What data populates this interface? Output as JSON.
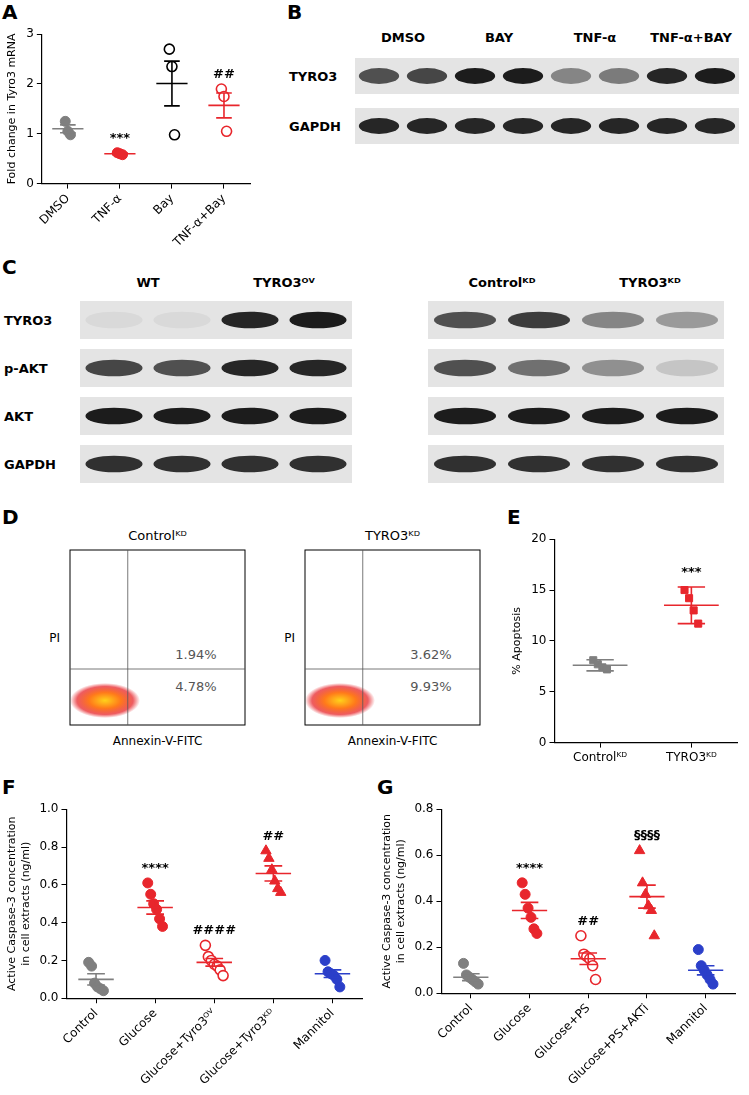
{
  "chart_data": [
    {
      "panel": "A",
      "type": "dot",
      "y_label": "Fold change in Tyro3 mRNA",
      "ylim": [
        0,
        3
      ],
      "yticks": [
        0,
        1,
        2,
        3
      ],
      "grid": false,
      "groups": [
        {
          "category": "DMSO",
          "color": "#7f7f7f",
          "marker": "circle",
          "values": [
            1.25,
            1.05,
            0.98
          ],
          "mean": 1.1,
          "error": 0.08
        },
        {
          "category": "TNF-α",
          "color": "#e8262c",
          "marker": "circle",
          "values": [
            0.62,
            0.6,
            0.58
          ],
          "mean": 0.6,
          "error": 0.02,
          "annotation": "***"
        },
        {
          "category": "Bay",
          "color": "#000000",
          "marker": "open circle",
          "values": [
            2.7,
            2.35,
            0.98
          ],
          "mean": 2.01,
          "error": 0.45
        },
        {
          "category": "TNF-α+Bay",
          "color": "#e8262c",
          "marker": "open circle",
          "values": [
            1.9,
            1.75,
            1.05
          ],
          "mean": 1.57,
          "error": 0.25,
          "annotation": "##"
        }
      ]
    },
    {
      "panel": "E",
      "type": "dot",
      "y_label": "% Apoptosis",
      "ylim": [
        0,
        20
      ],
      "yticks": [
        0,
        5,
        10,
        15,
        20
      ],
      "grid": false,
      "groups": [
        {
          "category": "Controlᴷᴰ",
          "color": "#7f7f7f",
          "marker": "square",
          "values": [
            8.1,
            7.7,
            7.4,
            7.2
          ],
          "mean": 7.6,
          "error": 0.55
        },
        {
          "category": "TYRO3ᴷᴰ",
          "color": "#e8262c",
          "marker": "square",
          "values": [
            15.0,
            14.2,
            13.0,
            11.7
          ],
          "mean": 13.5,
          "error": 1.8,
          "annotation": "***"
        }
      ]
    },
    {
      "panel": "F",
      "type": "dot",
      "y_label": [
        "Active Caspase-3 concentration",
        "in cell extracts (ng/ml)"
      ],
      "ylim": [
        0,
        1
      ],
      "yticks": [
        {
          "value": 0,
          "label": "0.0"
        },
        0.2,
        0.4,
        0.6,
        0.8,
        {
          "value": 1,
          "label": "1.0"
        }
      ],
      "grid": false,
      "groups": [
        {
          "category": "Control",
          "color": "#7f7f7f",
          "marker": "circle",
          "values": [
            0.19,
            0.17,
            0.08,
            0.06,
            0.05,
            0.04
          ],
          "mean": 0.1,
          "error": 0.03
        },
        {
          "category": "Glucose",
          "color": "#e8262c",
          "marker": "circle",
          "values": [
            0.61,
            0.55,
            0.5,
            0.47,
            0.42,
            0.38
          ],
          "mean": 0.48,
          "error": 0.035,
          "annotation": "****"
        },
        {
          "category": "Glucose+Tyro3ᴼⱽ",
          "color": "#e8262c",
          "marker": "open circle",
          "values": [
            0.28,
            0.22,
            0.2,
            0.18,
            0.17,
            0.15,
            0.12
          ],
          "mean": 0.19,
          "error": 0.02,
          "annotation": "####"
        },
        {
          "category": "Glucose+Tyro3ᴷᴰ",
          "color": "#e8262c",
          "marker": "triangle",
          "values": [
            0.78,
            0.74,
            0.68,
            0.62,
            0.58,
            0.56
          ],
          "mean": 0.66,
          "error": 0.04,
          "annotation": "##"
        },
        {
          "category": "Mannitol",
          "color": "#2b3fc9",
          "marker": "circle",
          "values": [
            0.2,
            0.14,
            0.13,
            0.12,
            0.1,
            0.06
          ],
          "mean": 0.13,
          "error": 0.02
        }
      ]
    },
    {
      "panel": "G",
      "type": "dot",
      "y_label": [
        "Active Caspase-3 concentration",
        "in cell extracts (ng/ml)"
      ],
      "ylim": [
        0,
        0.8
      ],
      "yticks": [
        {
          "value": 0,
          "label": "0.0"
        },
        0.2,
        0.4,
        0.6,
        0.8
      ],
      "grid": false,
      "groups": [
        {
          "category": "Control",
          "color": "#7f7f7f",
          "marker": "circle",
          "values": [
            0.13,
            0.08,
            0.07,
            0.06,
            0.05,
            0.04
          ],
          "mean": 0.07,
          "error": 0.015
        },
        {
          "category": "Glucose",
          "color": "#e8262c",
          "marker": "circle",
          "values": [
            0.48,
            0.43,
            0.37,
            0.33,
            0.28,
            0.26
          ],
          "mean": 0.36,
          "error": 0.035,
          "annotation": "****"
        },
        {
          "category": "Glucose+PS",
          "color": "#e8262c",
          "marker": "open circle",
          "values": [
            0.25,
            0.17,
            0.16,
            0.15,
            0.12,
            0.06
          ],
          "mean": 0.15,
          "error": 0.025,
          "annotation": "##"
        },
        {
          "category": "Glucose+PS+AKTi",
          "color": "#e8262c",
          "marker": "triangle",
          "values": [
            0.62,
            0.48,
            0.43,
            0.38,
            0.36,
            0.25
          ],
          "mean": 0.42,
          "error": 0.05,
          "annotation": "§§§§"
        },
        {
          "category": "Mannitol",
          "color": "#2b3fc9",
          "marker": "circle",
          "values": [
            0.19,
            0.12,
            0.1,
            0.08,
            0.06,
            0.04
          ],
          "mean": 0.1,
          "error": 0.02
        }
      ]
    }
  ],
  "blots": [
    {
      "panel": "B",
      "row_labels": [
        "TYRO3",
        "GAPDH"
      ],
      "blocks": [
        {
          "columns": [
            "DMSO",
            "BAY",
            "TNF-α",
            "TNF-α+BAY"
          ],
          "bands": [
            [
              0.7,
              0.75,
              0.95,
              0.95,
              0.45,
              0.5,
              0.9,
              0.95
            ],
            [
              0.9,
              0.9,
              0.9,
              0.9,
              0.9,
              0.9,
              0.9,
              0.9
            ]
          ]
        }
      ]
    },
    {
      "panel": "C",
      "row_labels": [
        "TYRO3",
        "p-AKT",
        "AKT",
        "GAPDH"
      ],
      "blocks": [
        {
          "columns": [
            "WT",
            "TYRO3ᴼⱽ"
          ],
          "bands": [
            [
              0.05,
              0.05,
              0.9,
              0.95
            ],
            [
              0.75,
              0.7,
              0.9,
              0.9
            ],
            [
              0.95,
              0.95,
              0.95,
              0.95
            ],
            [
              0.85,
              0.85,
              0.85,
              0.85
            ]
          ]
        },
        {
          "columns": [
            "Controlᴷᴰ",
            "TYRO3ᴷᴰ"
          ],
          "bands": [
            [
              0.7,
              0.8,
              0.45,
              0.35
            ],
            [
              0.7,
              0.55,
              0.4,
              0.15
            ],
            [
              0.95,
              0.95,
              0.95,
              0.95
            ],
            [
              0.85,
              0.85,
              0.85,
              0.85
            ]
          ]
        }
      ]
    }
  ],
  "flow": {
    "panel": "D",
    "x_label": "Annexin-V-FITC",
    "y_label": "PI",
    "plots": [
      {
        "title": "Controlᴷᴰ",
        "upper_right": "1.94%",
        "lower_right": "4.78%"
      },
      {
        "title": "TYRO3ᴷᴰ",
        "upper_right": "3.62%",
        "lower_right": "9.93%"
      }
    ]
  }
}
